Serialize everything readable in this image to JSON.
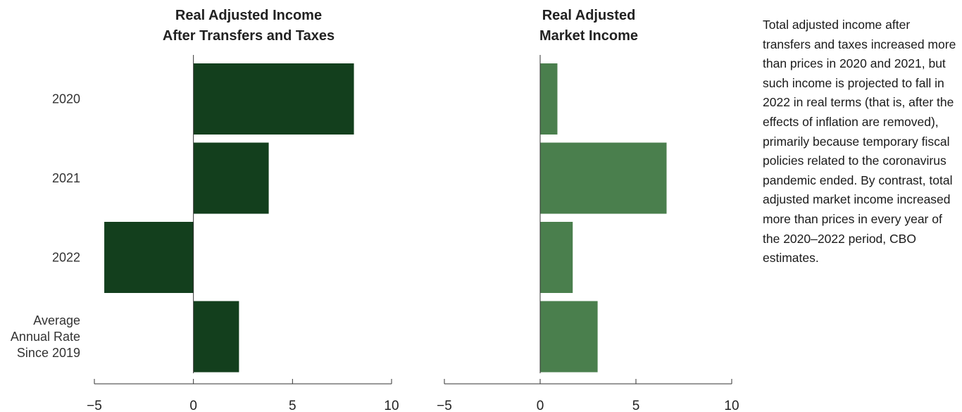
{
  "note": "Total adjusted income after transfers and taxes increased more than prices in 2020 and 2021, but such income is projected to fall in 2022 in real terms (that is, after the effects of inflation are removed), primarily because temporary fiscal policies related to the coronavirus pandemic ended. By contrast, total adjusted market income increased more than prices in every year of the 2020–2022 period, CBO estimates.",
  "chart_data": [
    {
      "type": "bar",
      "orientation": "horizontal",
      "title": [
        "Real Adjusted Income",
        "After Transfers and Taxes"
      ],
      "categories": [
        [
          "2020"
        ],
        [
          "2021"
        ],
        [
          "2022"
        ],
        [
          "Average",
          "Annual Rate",
          "Since 2019"
        ]
      ],
      "values": [
        8.1,
        3.8,
        -4.5,
        2.3
      ],
      "xlim": [
        -5,
        10
      ],
      "xticks": [
        -5,
        0,
        5,
        10
      ],
      "xtick_labels": [
        "−5",
        "0",
        "5",
        "10"
      ],
      "color": "#133f1d"
    },
    {
      "type": "bar",
      "orientation": "horizontal",
      "title": [
        "Real Adjusted",
        "Market Income"
      ],
      "categories": [
        [
          "2020"
        ],
        [
          "2021"
        ],
        [
          "2022"
        ],
        [
          "Average",
          "Annual Rate",
          "Since 2019"
        ]
      ],
      "values": [
        0.9,
        6.6,
        1.7,
        3.0
      ],
      "xlim": [
        -5,
        10
      ],
      "xticks": [
        -5,
        0,
        5,
        10
      ],
      "xtick_labels": [
        "−5",
        "0",
        "5",
        "10"
      ],
      "color": "#4a7f4d"
    }
  ]
}
